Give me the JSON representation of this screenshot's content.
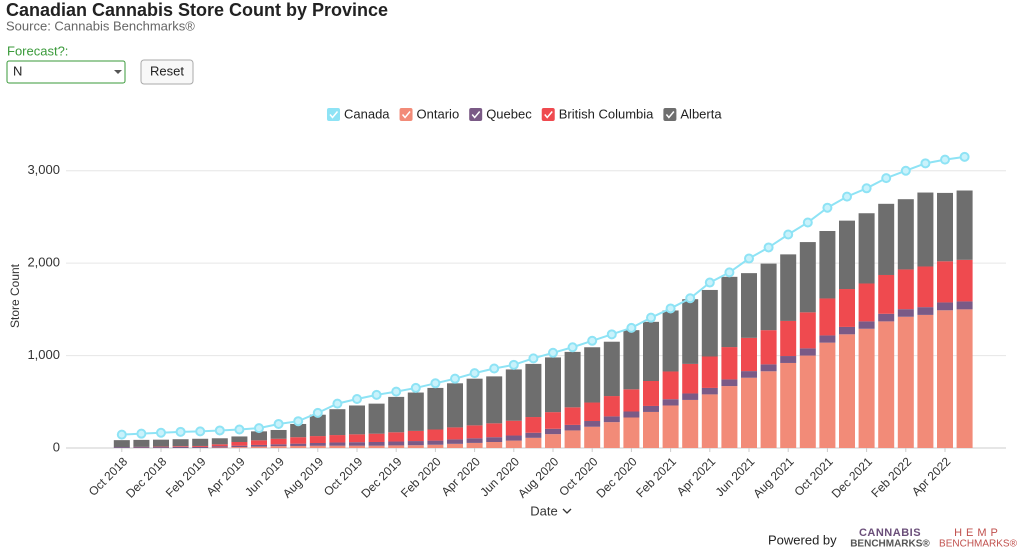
{
  "header": {
    "title": "Canadian Cannabis Store Count by Province",
    "source": "Source: Cannabis Benchmarks®"
  },
  "controls": {
    "forecast_label": "Forecast?:",
    "forecast_value": "N",
    "reset": "Reset"
  },
  "footer": {
    "powered_by": "Powered by",
    "logo1": [
      "CANNABIS",
      "BENCHMARKS®"
    ],
    "logo2": [
      "HEMP",
      "BENCHMARKS®"
    ]
  },
  "chart_data": {
    "type": "bar",
    "stacked": true,
    "grid": true,
    "x_label": "Date",
    "y_label": "Store Count",
    "ylim": [
      0,
      3300
    ],
    "yticks": [
      0,
      {
        "value": 1000,
        "label": "1,000"
      },
      {
        "value": 2000,
        "label": "2,000"
      },
      {
        "value": 3000,
        "label": "3,000"
      }
    ],
    "categories": [
      "Oct 2018",
      null,
      "Dec 2018",
      null,
      "Feb 2019",
      null,
      "Apr 2019",
      null,
      "Jun 2019",
      null,
      "Aug 2019",
      null,
      "Oct 2019",
      null,
      "Dec 2019",
      null,
      "Feb 2020",
      null,
      "Apr 2020",
      null,
      "Jun 2020",
      null,
      "Aug 2020",
      null,
      "Oct 2020",
      null,
      "Dec 2020",
      null,
      "Feb 2021",
      null,
      "Apr 2021",
      null,
      "Jun 2021",
      null,
      "Aug 2021",
      null,
      "Oct 2021",
      null,
      "Dec 2021",
      null,
      "Feb 2022",
      null,
      "Apr 2022",
      null
    ],
    "series": [
      {
        "name": "Canada",
        "type": "line",
        "color": "#8ee3f5",
        "values": [
          145,
          155,
          165,
          175,
          180,
          190,
          200,
          215,
          260,
          290,
          380,
          480,
          530,
          575,
          610,
          650,
          700,
          750,
          810,
          860,
          900,
          970,
          1030,
          1090,
          1160,
          1230,
          1300,
          1410,
          1510,
          1620,
          1790,
          1900,
          2050,
          2170,
          2310,
          2440,
          2600,
          2720,
          2810,
          2920,
          3000,
          3080,
          3120,
          3150
        ]
      },
      {
        "name": "Ontario",
        "type": "bar",
        "color": "#f28b78",
        "values": [
          0,
          0,
          0,
          0,
          0,
          5,
          10,
          15,
          20,
          22,
          24,
          25,
          25,
          25,
          28,
          30,
          35,
          45,
          55,
          65,
          80,
          110,
          150,
          190,
          230,
          280,
          330,
          390,
          460,
          520,
          580,
          670,
          760,
          830,
          920,
          1000,
          1140,
          1230,
          1290,
          1370,
          1420,
          1440,
          1490,
          1500
        ]
      },
      {
        "name": "Quebec",
        "type": "bar",
        "color": "#7a5a86",
        "values": [
          10,
          10,
          10,
          12,
          12,
          15,
          15,
          18,
          20,
          25,
          30,
          35,
          38,
          40,
          42,
          45,
          45,
          48,
          50,
          52,
          55,
          55,
          58,
          60,
          62,
          62,
          65,
          65,
          68,
          70,
          70,
          72,
          72,
          75,
          75,
          78,
          78,
          80,
          80,
          82,
          82,
          84,
          85,
          86
        ]
      },
      {
        "name": "British Columbia",
        "type": "bar",
        "color": "#ef4a4f",
        "values": [
          0,
          2,
          5,
          8,
          10,
          20,
          40,
          50,
          60,
          70,
          75,
          80,
          85,
          90,
          100,
          110,
          120,
          130,
          140,
          150,
          160,
          170,
          180,
          190,
          200,
          220,
          240,
          270,
          300,
          320,
          340,
          350,
          360,
          370,
          380,
          390,
          400,
          410,
          410,
          420,
          430,
          440,
          445,
          450
        ]
      },
      {
        "name": "Alberta",
        "type": "bar",
        "color": "#6e6e6e",
        "values": [
          75,
          76,
          75,
          75,
          78,
          65,
          60,
          97,
          95,
          143,
          231,
          280,
          312,
          325,
          383,
          415,
          450,
          477,
          505,
          508,
          555,
          575,
          592,
          600,
          598,
          588,
          640,
          640,
          660,
          700,
          720,
          760,
          700,
          720,
          720,
          760,
          730,
          740,
          760,
          770,
          760,
          800,
          740,
          750
        ]
      }
    ]
  }
}
